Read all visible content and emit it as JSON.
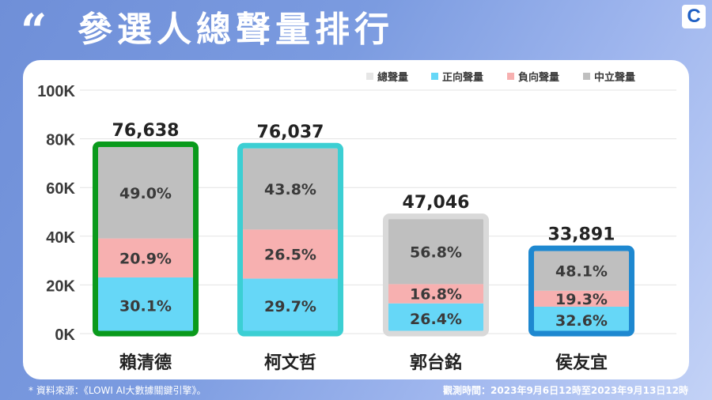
{
  "header": {
    "quote_glyph": "“",
    "title": "參選人總聲量排行",
    "logo_text": "C"
  },
  "footer": {
    "source": "* 資料來源：《LOWI AI大數據關鍵引擎》。",
    "period": "觀測時間：2023年9月6日12時至2023年9月13日12時"
  },
  "colors": {
    "total": "#e6e6e6",
    "positive": "#66d7f7",
    "negative": "#f7b0b0",
    "neutral": "#bfbfbf"
  },
  "chart_data": {
    "type": "bar",
    "stacked": true,
    "categories": [
      "賴清德",
      "柯文哲",
      "郭台銘",
      "侯友宜"
    ],
    "totals": [
      76638,
      76037,
      47046,
      33891
    ],
    "total_labels": [
      "76,638",
      "76,037",
      "47,046",
      "33,891"
    ],
    "series": [
      {
        "name": "正向聲量",
        "percent": [
          30.1,
          29.7,
          26.4,
          32.6
        ],
        "labels": [
          "30.1%",
          "29.7%",
          "26.4%",
          "32.6%"
        ]
      },
      {
        "name": "負向聲量",
        "percent": [
          20.9,
          26.5,
          16.8,
          19.3
        ],
        "labels": [
          "20.9%",
          "26.5%",
          "16.8%",
          "19.3%"
        ]
      },
      {
        "name": "中立聲量",
        "percent": [
          49.0,
          43.8,
          56.8,
          48.1
        ],
        "labels": [
          "49.0%",
          "43.8%",
          "56.8%",
          "48.1%"
        ]
      }
    ],
    "legend": [
      "總聲量",
      "正向聲量",
      "負向聲量",
      "中立聲量"
    ],
    "legend_placement": "top-right",
    "ylim": [
      0,
      100000
    ],
    "yticks": [
      "0K",
      "20K",
      "40K",
      "60K",
      "80K",
      "100K"
    ],
    "grid": true,
    "outline_colors": [
      "#0a9a1c",
      "#3ccfd3",
      "#d9d9d9",
      "#1e88d0"
    ]
  }
}
